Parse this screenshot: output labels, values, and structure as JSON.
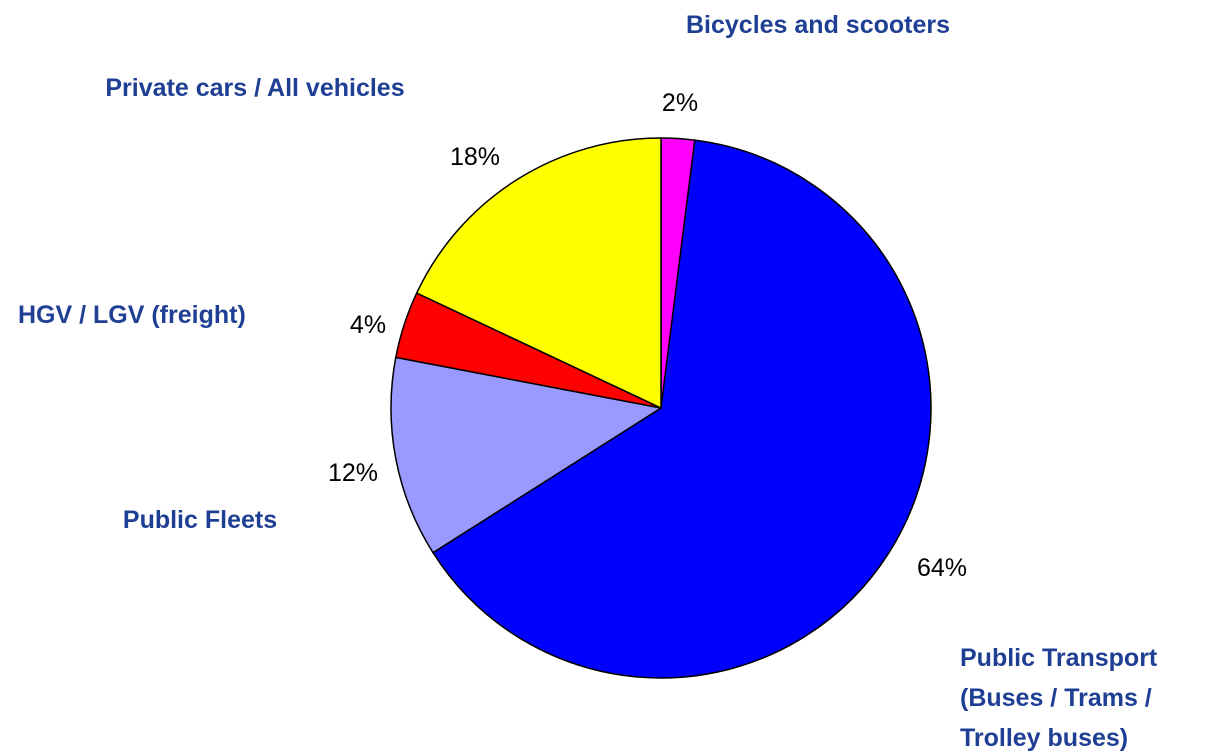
{
  "chart_data": {
    "type": "pie",
    "categories": [
      "Bicycles and scooters",
      "Public Transport (Buses / Trams / Trolley buses)",
      "Public Fleets",
      "HGV / LGV (freight)",
      "Private cars / All vehicles"
    ],
    "values": [
      2,
      64,
      12,
      4,
      18
    ],
    "value_labels": [
      "2%",
      "64%",
      "12%",
      "4%",
      "18%"
    ],
    "colors": [
      "#ff00ff",
      "#0000ff",
      "#9999ff",
      "#ff0000",
      "#ffff00"
    ]
  }
}
